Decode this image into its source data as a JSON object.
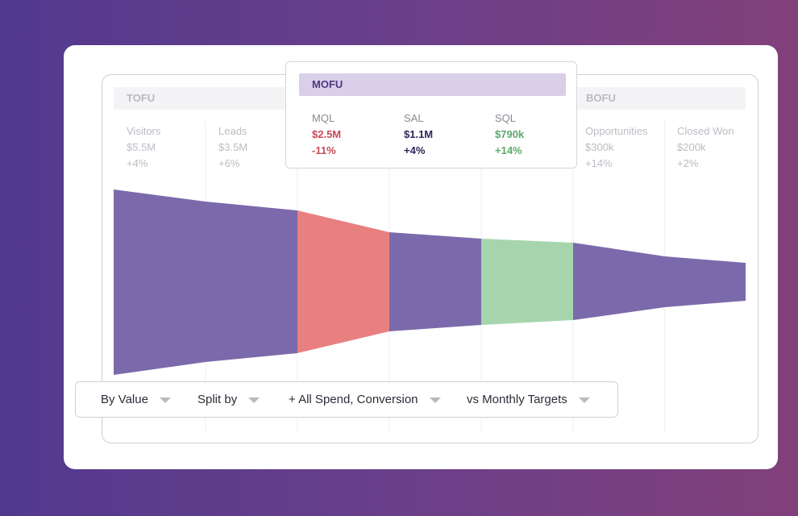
{
  "groups": [
    {
      "title": "TOFU"
    },
    {
      "title": "MOFU"
    },
    {
      "title": "BOFU"
    }
  ],
  "stages": [
    {
      "name": "Visitors",
      "value": "$5.5M",
      "change": "+4%"
    },
    {
      "name": "Leads",
      "value": "$3.5M",
      "change": "+6%"
    },
    {
      "name": "MQL",
      "value": "$2.5M",
      "change": "-11%"
    },
    {
      "name": "SAL",
      "value": "$1.1M",
      "change": "+4%"
    },
    {
      "name": "SQL",
      "value": "$790k",
      "change": "+14%"
    },
    {
      "name": "Opportunities",
      "value": "$300k",
      "change": "+14%"
    },
    {
      "name": "Closed Won",
      "value": "$200k",
      "change": "+2%"
    }
  ],
  "toolbar": [
    "By Value",
    "Split by",
    "+ All Spend, Conversion",
    "vs Monthly Targets"
  ]
}
